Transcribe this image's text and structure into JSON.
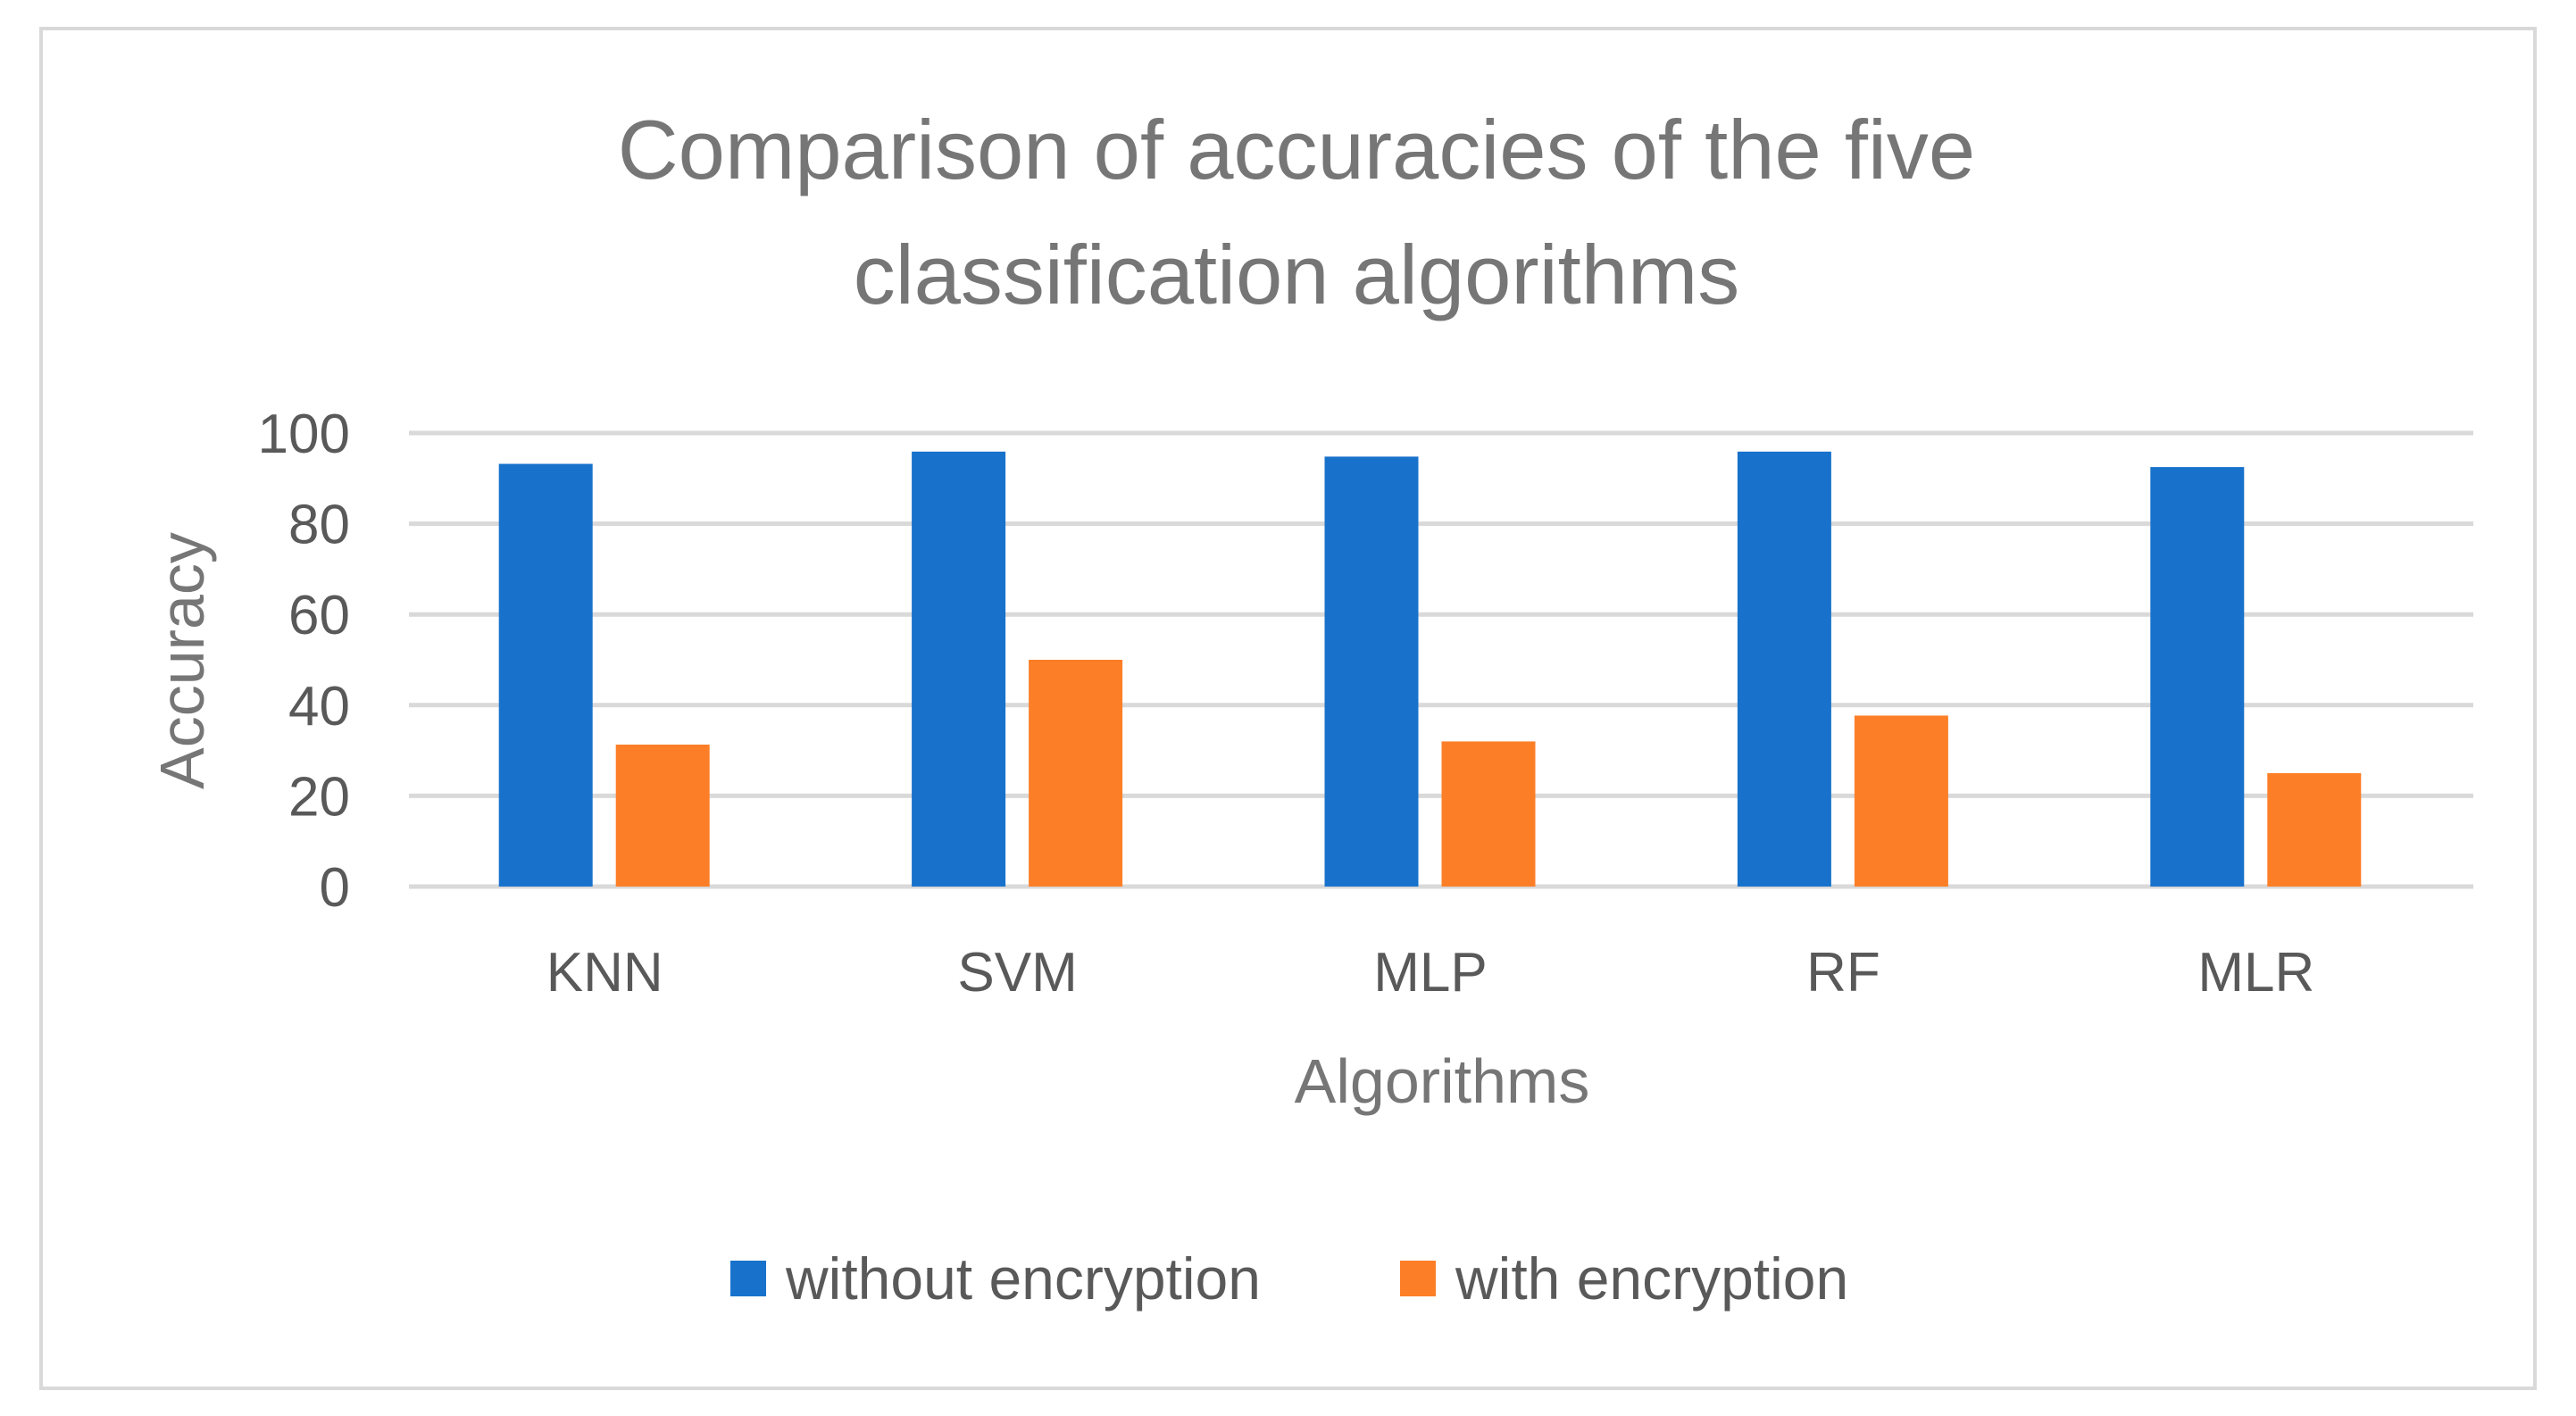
{
  "chart_data": {
    "type": "bar",
    "title": "Comparison of accuracies of the five classification algorithms",
    "title_lines": [
      "Comparison of accuracies of the five",
      "classification algorithms"
    ],
    "xlabel": "Algorithms",
    "ylabel": "Accuracy",
    "categories": [
      "KNN",
      "SVM",
      "MLP",
      "RF",
      "MLR"
    ],
    "ylim": [
      0,
      100
    ],
    "yticks": [
      0,
      20,
      40,
      60,
      80,
      100
    ],
    "grid": true,
    "legend_position": "bottom",
    "series": [
      {
        "name": "without encryption",
        "color": "#1872cb",
        "values": [
          93.2,
          95.9,
          94.8,
          95.9,
          92.5
        ]
      },
      {
        "name": "with encryption",
        "color": "#fc7f28",
        "values": [
          31.3,
          50.0,
          32.0,
          37.7,
          25.0
        ]
      }
    ]
  }
}
